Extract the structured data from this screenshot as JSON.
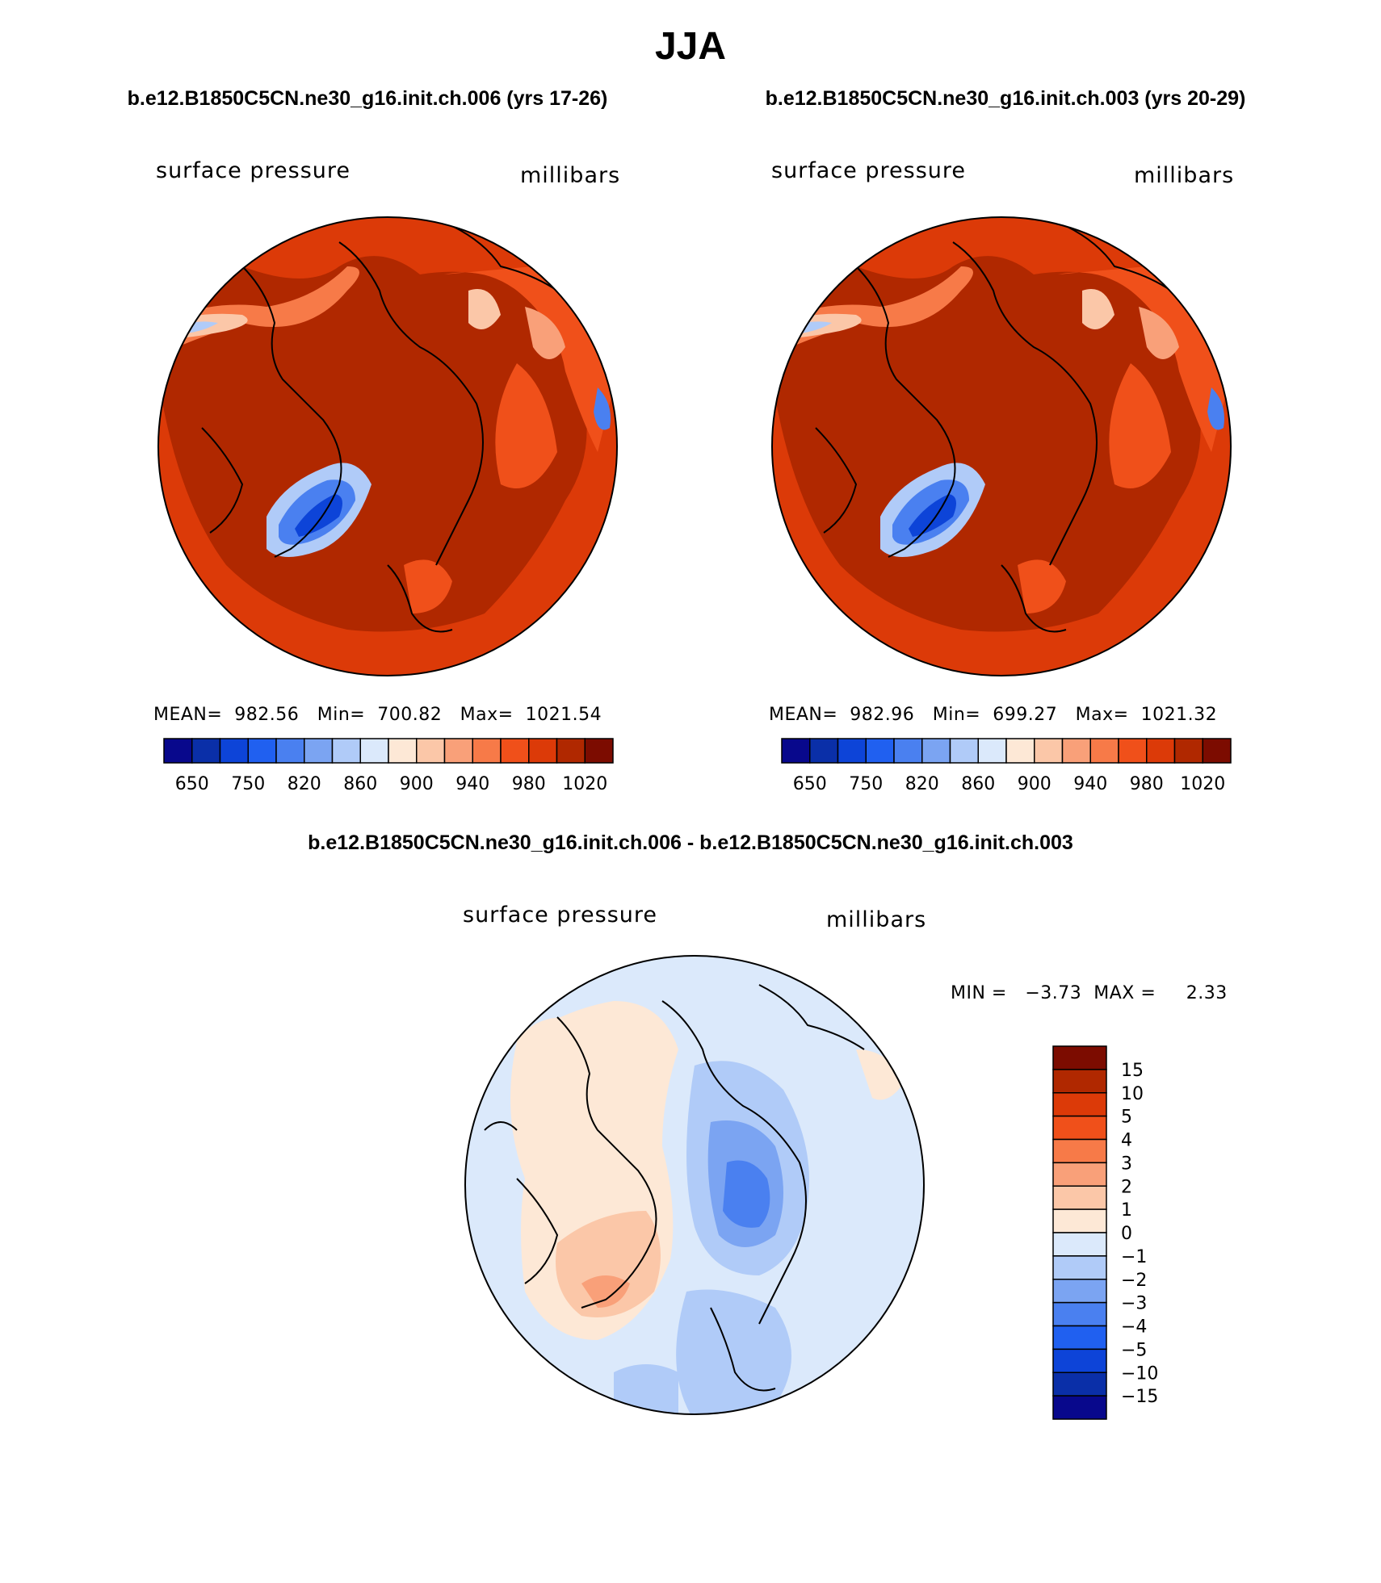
{
  "page": {
    "title": "JJA",
    "subtitle_left": "b.e12.B1850C5CN.ne30_g16.init.ch.006 (yrs 17-26)",
    "subtitle_right": "b.e12.B1850C5CN.ne30_g16.init.ch.003 (yrs 20-29)",
    "diff_title": "b.e12.B1850C5CN.ne30_g16.init.ch.006 - b.e12.B1850C5CN.ne30_g16.init.ch.003"
  },
  "colors": {
    "abs_scale": [
      "#08088c",
      "#0a2fa8",
      "#0d44d8",
      "#2060f0",
      "#4a80f0",
      "#7ba4f2",
      "#b0cbf8",
      "#dbe9fb",
      "#fde8d6",
      "#fbc7a8",
      "#f9a079",
      "#f77a48",
      "#f0501a",
      "#dc3a08",
      "#b02800",
      "#7c0c00"
    ],
    "diff_scale": [
      "#08088c",
      "#0a2fa8",
      "#0d44d8",
      "#2060f0",
      "#4a80f0",
      "#7ba4f2",
      "#b0cbf8",
      "#dbe9fb",
      "#fde8d6",
      "#fbc7a8",
      "#f9a079",
      "#f77a48",
      "#f0501a",
      "#dc3a08",
      "#b02800",
      "#7c0c00"
    ]
  },
  "chart_data": [
    {
      "type": "heatmap",
      "projection": "north polar stereographic",
      "variable": "surface pressure",
      "units": "millibars",
      "stats": "MEAN=  982.56   Min=  700.82   Max=  1021.54",
      "mean": 982.56,
      "min": 700.82,
      "max": 1021.54,
      "colorbar_ticks": [
        "650",
        "750",
        "820",
        "860",
        "900",
        "940",
        "980",
        "1020"
      ],
      "colorbar_levels": [
        600,
        650,
        700,
        750,
        800,
        820,
        840,
        860,
        880,
        900,
        920,
        940,
        960,
        980,
        1000,
        1020
      ]
    },
    {
      "type": "heatmap",
      "projection": "north polar stereographic",
      "variable": "surface pressure",
      "units": "millibars",
      "stats": "MEAN=  982.96   Min=  699.27   Max=  1021.32",
      "mean": 982.96,
      "min": 699.27,
      "max": 1021.32,
      "colorbar_ticks": [
        "650",
        "750",
        "820",
        "860",
        "900",
        "940",
        "980",
        "1020"
      ],
      "colorbar_levels": [
        600,
        650,
        700,
        750,
        800,
        820,
        840,
        860,
        880,
        900,
        920,
        940,
        960,
        980,
        1000,
        1020
      ]
    },
    {
      "type": "heatmap",
      "projection": "north polar stereographic",
      "variable": "surface pressure",
      "units": "millibars",
      "stats": "MIN =   −3.73  MAX =     2.33",
      "min": -3.73,
      "max": 2.33,
      "colorbar_labels": [
        "15",
        "10",
        "5",
        "4",
        "3",
        "2",
        "1",
        "0",
        "−1",
        "−2",
        "−3",
        "−4",
        "−5",
        "−10",
        "−15"
      ]
    }
  ]
}
